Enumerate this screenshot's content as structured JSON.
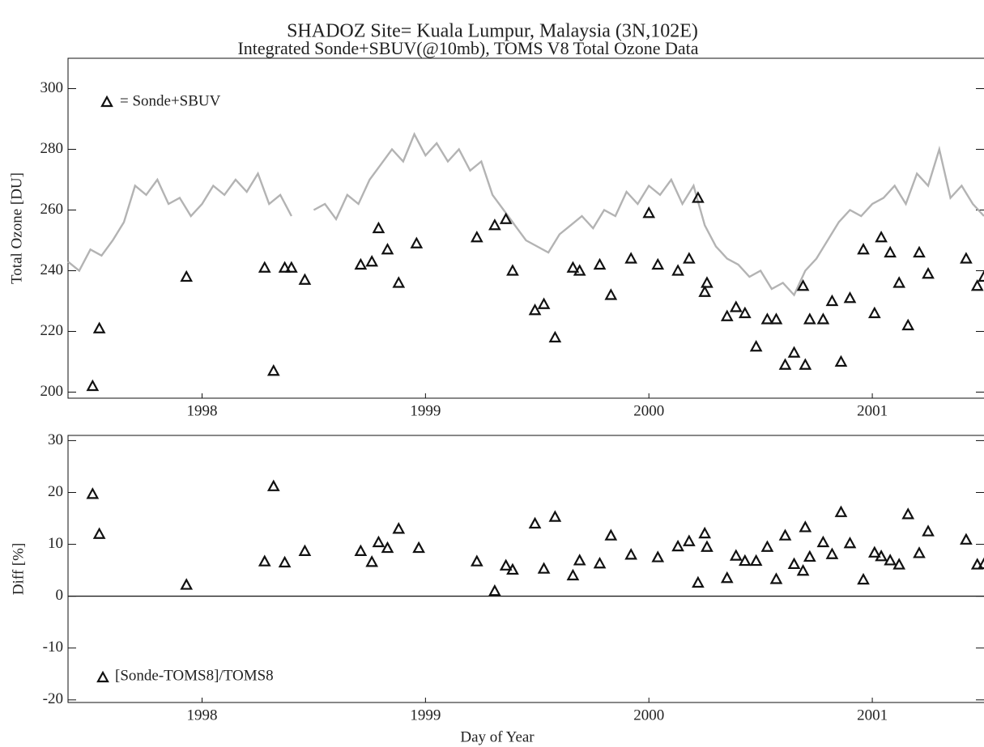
{
  "chart_data": [
    {
      "type": "scatter",
      "title": "SHADOZ Site= Kuala Lumpur, Malaysia (3N,102E)",
      "subtitle": "Integrated Sonde+SBUV(@10mb),  TOMS V8 Total Ozone Data",
      "ylabel": "Total Ozone [DU]",
      "xlim": [
        1997.9,
        2002.0
      ],
      "ylim": [
        198,
        310
      ],
      "xticks": [
        {
          "value": 1998.5,
          "label": "1998"
        },
        {
          "value": 1999.5,
          "label": "1999"
        },
        {
          "value": 2000.5,
          "label": "2000"
        },
        {
          "value": 2001.5,
          "label": "2001"
        }
      ],
      "yticks": [
        200,
        220,
        240,
        260,
        280,
        300
      ],
      "series": [
        {
          "type": "line",
          "color": "#b3b3b3",
          "x": [
            1997.9,
            1997.95,
            1998.0,
            1998.05,
            1998.1,
            1998.15,
            1998.2,
            1998.25,
            1998.3,
            1998.35,
            1998.4,
            1998.45,
            1998.5,
            1998.55,
            1998.6,
            1998.65,
            1998.7,
            1998.75,
            1998.8,
            1998.85,
            1998.9,
            1998.95,
            1999.0,
            1999.05,
            1999.1,
            1999.15,
            1999.2,
            1999.25,
            1999.3,
            1999.35,
            1999.4,
            1999.45,
            1999.5,
            1999.55,
            1999.6,
            1999.65,
            1999.7,
            1999.75,
            1999.8,
            1999.85,
            1999.9,
            1999.95,
            2000.0,
            2000.05,
            2000.1,
            2000.15,
            2000.2,
            2000.25,
            2000.3,
            2000.35,
            2000.4,
            2000.45,
            2000.5,
            2000.55,
            2000.6,
            2000.65,
            2000.7,
            2000.75,
            2000.8,
            2000.85,
            2000.9,
            2000.95,
            2001.0,
            2001.05,
            2001.1,
            2001.15,
            2001.2,
            2001.25,
            2001.3,
            2001.35,
            2001.4,
            2001.45,
            2001.5,
            2001.55,
            2001.6,
            2001.65,
            2001.7,
            2001.75,
            2001.8,
            2001.85,
            2001.9,
            2001.95,
            2002.0
          ],
          "values": [
            243,
            240,
            247,
            245,
            250,
            256,
            268,
            265,
            270,
            262,
            264,
            258,
            262,
            268,
            265,
            270,
            266,
            272,
            262,
            265,
            258,
            null,
            260,
            262,
            257,
            265,
            262,
            270,
            275,
            280,
            276,
            285,
            278,
            282,
            276,
            280,
            273,
            276,
            265,
            260,
            255,
            250,
            248,
            246,
            252,
            255,
            258,
            254,
            260,
            258,
            266,
            262,
            268,
            265,
            270,
            262,
            268,
            255,
            248,
            244,
            242,
            238,
            240,
            234,
            236,
            232,
            240,
            244,
            250,
            256,
            260,
            258,
            262,
            264,
            268,
            262,
            272,
            268,
            280,
            264,
            268,
            262,
            258
          ]
        },
        {
          "type": "scatter",
          "name": "= Sonde+SBUV",
          "color": "#111111",
          "x": [
            1998.01,
            1998.04,
            1998.43,
            1998.78,
            1998.82,
            1998.87,
            1998.9,
            1998.96,
            1999.21,
            1999.26,
            1999.29,
            1999.33,
            1999.38,
            1999.46,
            1999.73,
            1999.81,
            1999.86,
            1999.89,
            1999.99,
            2000.03,
            2000.08,
            2000.16,
            2000.19,
            2000.28,
            2000.33,
            2000.42,
            2000.5,
            2000.54,
            2000.63,
            2000.68,
            2000.72,
            2000.75,
            2000.76,
            2000.85,
            2000.89,
            2000.93,
            2000.98,
            2001.03,
            2001.07,
            2001.11,
            2001.15,
            2001.19,
            2001.2,
            2001.22,
            2001.28,
            2001.32,
            2001.36,
            2001.4,
            2001.46,
            2001.51,
            2001.54,
            2001.58,
            2001.62,
            2001.66,
            2001.71,
            2001.75,
            2001.92,
            2001.97,
            2002.0
          ],
          "values": [
            202,
            221,
            238,
            241,
            207,
            241,
            241,
            237,
            242,
            243,
            254,
            247,
            236,
            249,
            251,
            255,
            257,
            240,
            227,
            229,
            218,
            241,
            240,
            242,
            232,
            244,
            259,
            242,
            240,
            244,
            264,
            233,
            236,
            225,
            228,
            226,
            215,
            224,
            224,
            209,
            213,
            235,
            209,
            224,
            224,
            230,
            210,
            231,
            247,
            226,
            251,
            246,
            236,
            222,
            246,
            239,
            244,
            235,
            238
          ]
        }
      ]
    },
    {
      "type": "scatter",
      "ylabel": "Diff [%]",
      "xlabel": "Day of Year",
      "xlim": [
        1997.9,
        2002.0
      ],
      "ylim": [
        -20.5,
        31
      ],
      "xticks": [
        {
          "value": 1998.5,
          "label": "1998"
        },
        {
          "value": 1999.5,
          "label": "1999"
        },
        {
          "value": 2000.5,
          "label": "2000"
        },
        {
          "value": 2001.5,
          "label": "2001"
        }
      ],
      "yticks": [
        -20,
        -10,
        0,
        10,
        20,
        30
      ],
      "hline": 0,
      "series": [
        {
          "type": "scatter",
          "name": "[Sonde-TOMS8]/TOMS8",
          "color": "#111111",
          "x": [
            1998.01,
            1998.04,
            1998.43,
            1998.78,
            1998.82,
            1998.87,
            1998.96,
            1999.21,
            1999.26,
            1999.29,
            1999.33,
            1999.38,
            1999.47,
            1999.73,
            1999.81,
            1999.86,
            1999.89,
            1999.99,
            2000.03,
            2000.08,
            2000.16,
            2000.19,
            2000.28,
            2000.33,
            2000.42,
            2000.54,
            2000.63,
            2000.68,
            2000.72,
            2000.75,
            2000.76,
            2000.85,
            2000.89,
            2000.93,
            2000.98,
            2001.03,
            2001.07,
            2001.11,
            2001.15,
            2001.19,
            2001.2,
            2001.22,
            2001.28,
            2001.32,
            2001.36,
            2001.4,
            2001.46,
            2001.51,
            2001.54,
            2001.58,
            2001.62,
            2001.66,
            2001.71,
            2001.75,
            2001.92,
            2001.97,
            2002.0
          ],
          "values": [
            19.7,
            12,
            2.2,
            6.7,
            21.2,
            6.5,
            8.7,
            8.7,
            6.6,
            10.4,
            9.3,
            13,
            9.3,
            6.7,
            1,
            5.9,
            5.1,
            14,
            5.3,
            15.3,
            4,
            6.9,
            6.3,
            11.7,
            8,
            7.5,
            9.6,
            10.6,
            2.6,
            12.1,
            9.5,
            3.5,
            7.8,
            6.8,
            6.8,
            9.5,
            3.3,
            11.7,
            6.2,
            4.9,
            13.3,
            7.6,
            10.4,
            8.1,
            16.2,
            10.2,
            3.2,
            8.4,
            7.7,
            6.9,
            6.1,
            15.8,
            8.3,
            12.5,
            10.9,
            6.1,
            6.2
          ]
        }
      ]
    }
  ]
}
